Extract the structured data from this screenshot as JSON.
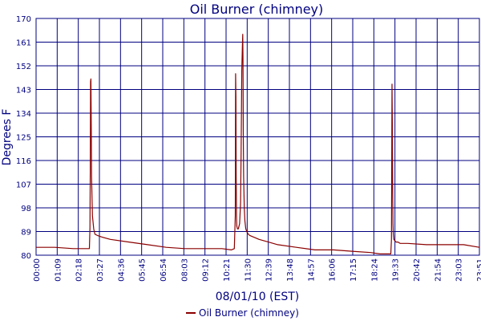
{
  "chart_data": {
    "type": "line",
    "title": "Oil Burner (chimney)",
    "xlabel": "08/01/10 (EST)",
    "ylabel": "Degrees F",
    "ylim": [
      80,
      170
    ],
    "yticks": [
      "80",
      "89",
      "98",
      "107",
      "116",
      "125",
      "134",
      "143",
      "152",
      "161",
      "170"
    ],
    "xlim": [
      "00:00",
      "23:51"
    ],
    "xticks": [
      "00:00",
      "01:09",
      "02:18",
      "03:27",
      "04:36",
      "05:45",
      "06:54",
      "08:03",
      "09:12",
      "10:21",
      "11:30",
      "12:39",
      "13:48",
      "14:57",
      "16:06",
      "17:15",
      "18:24",
      "19:33",
      "20:42",
      "21:54",
      "23:03",
      "23:51"
    ],
    "grid": true,
    "legend_position": "bottom-center",
    "colors": {
      "series": "#8b0000",
      "grid": "#000080",
      "text": "#000080"
    },
    "series": [
      {
        "name": "Oil Burner (chimney)",
        "x": [
          "00:00",
          "01:00",
          "02:00",
          "02:52",
          "02:54",
          "02:55",
          "02:56",
          "02:57",
          "02:58",
          "02:59",
          "03:02",
          "03:06",
          "03:10",
          "03:18",
          "03:30",
          "04:00",
          "05:00",
          "06:00",
          "07:00",
          "08:00",
          "09:00",
          "10:00",
          "10:30",
          "10:40",
          "10:43",
          "10:44",
          "10:45",
          "10:46",
          "10:47",
          "10:48",
          "10:50",
          "10:53",
          "10:57",
          "11:00",
          "11:02",
          "11:04",
          "11:06",
          "11:07",
          "11:08",
          "11:09",
          "11:10",
          "11:12",
          "11:14",
          "11:17",
          "11:20",
          "11:25",
          "11:30",
          "11:40",
          "12:00",
          "12:30",
          "13:00",
          "14:00",
          "15:00",
          "16:00",
          "17:00",
          "18:00",
          "18:30",
          "19:00",
          "19:05",
          "19:07",
          "19:08",
          "19:09",
          "19:10",
          "19:11",
          "19:12",
          "19:13",
          "19:15",
          "19:18",
          "19:22",
          "19:28",
          "19:35",
          "20:00",
          "21:00",
          "22:00",
          "23:00",
          "23:51"
        ],
        "y": [
          83,
          83,
          82.5,
          82.5,
          90,
          112,
          146,
          147,
          130,
          110,
          95,
          90,
          88,
          87.5,
          87,
          86,
          85,
          84,
          83,
          82.5,
          82.5,
          82.5,
          82,
          82.5,
          95,
          149,
          140,
          110,
          95,
          91,
          90,
          90,
          92,
          100,
          120,
          150,
          160,
          164,
          155,
          125,
          110,
          98,
          93,
          90,
          89,
          88,
          87.5,
          87,
          86,
          85,
          84,
          83,
          82,
          82,
          81.5,
          81,
          80.5,
          80.5,
          80.5,
          86,
          110,
          145,
          130,
          105,
          92,
          88,
          86,
          85.5,
          85,
          85,
          84.5,
          84.5,
          84,
          84,
          84,
          83
        ]
      }
    ]
  }
}
